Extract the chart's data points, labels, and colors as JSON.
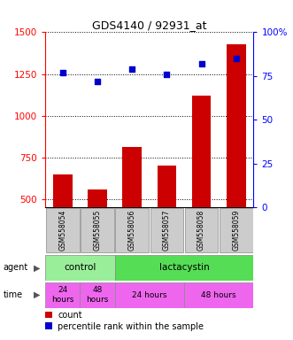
{
  "title": "GDS4140 / 92931_at",
  "samples": [
    "GSM558054",
    "GSM558055",
    "GSM558056",
    "GSM558057",
    "GSM558058",
    "GSM558059"
  ],
  "counts": [
    650,
    560,
    810,
    700,
    1120,
    1430
  ],
  "percentile_ranks": [
    77,
    72,
    79,
    76,
    82,
    85
  ],
  "ylim_left": [
    450,
    1500
  ],
  "ylim_right": [
    0,
    100
  ],
  "yticks_left": [
    500,
    750,
    1000,
    1250,
    1500
  ],
  "yticks_right": [
    0,
    25,
    50,
    75,
    100
  ],
  "ytick_right_labels": [
    "0",
    "25",
    "50",
    "75",
    "100%"
  ],
  "bar_color": "#cc0000",
  "dot_color": "#0000cc",
  "bg_color": "#cccccc",
  "agent_control_color": "#99ee99",
  "agent_lactacystin_color": "#55dd55",
  "time_color": "#ee66ee",
  "legend_count_color": "#cc0000",
  "legend_dot_color": "#0000cc"
}
